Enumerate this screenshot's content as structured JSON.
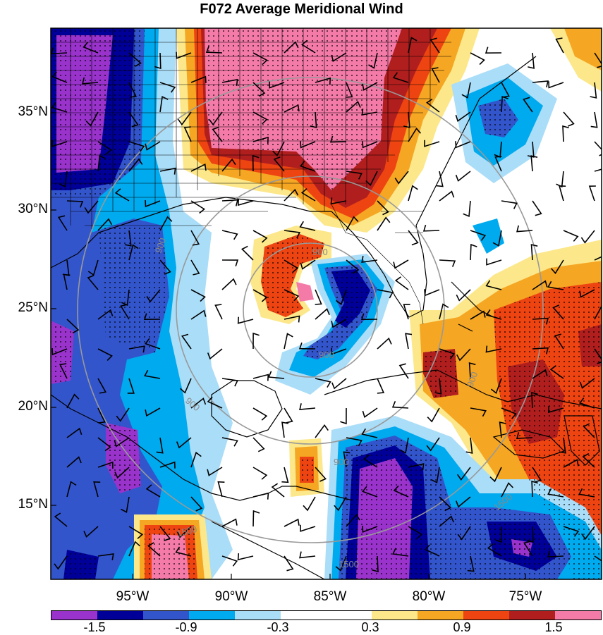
{
  "title": "F072 Average Meridional Wind",
  "map": {
    "lat_labels": [
      {
        "text": "35°N",
        "lat": 35
      },
      {
        "text": "30°N",
        "lat": 30
      },
      {
        "text": "25°N",
        "lat": 25
      },
      {
        "text": "20°N",
        "lat": 20
      },
      {
        "text": "15°N",
        "lat": 15
      }
    ],
    "lon_labels": [
      {
        "text": "95°W",
        "lon": -95
      },
      {
        "text": "90°W",
        "lon": -90
      },
      {
        "text": "85°W",
        "lon": -85
      },
      {
        "text": "80°W",
        "lon": -80
      },
      {
        "text": "75°W",
        "lon": -75
      }
    ],
    "range_ring_labels": [
      "900",
      "900",
      "900",
      "900",
      "900",
      "900",
      "1500",
      "1500",
      "1500"
    ],
    "colorbar": {
      "labels": [
        "-1.5",
        "-0.9",
        "-0.3",
        "0.3",
        "0.9",
        "1.5"
      ],
      "colors": [
        "#9933cc",
        "#000099",
        "#3355cc",
        "#00aaee",
        "#aaddf8",
        "#ffffff",
        "#ffffff",
        "#fce88a",
        "#f5a623",
        "#ee4411",
        "#b01e1e",
        "#f47aa8"
      ]
    },
    "field_colors": {
      "strong_neg": "#9933cc",
      "neg_dark": "#000099",
      "neg_mid": "#3355cc",
      "neg_light": "#00aaee",
      "neg_pale": "#aaddf8",
      "neutral": "#ffffff",
      "pos_pale": "#fce88a",
      "pos_light": "#f5a623",
      "pos_mid": "#ee4411",
      "pos_dark": "#b01e1e",
      "strong_pos": "#f47aa8",
      "ring": "#999999",
      "coast": "#000000"
    }
  }
}
